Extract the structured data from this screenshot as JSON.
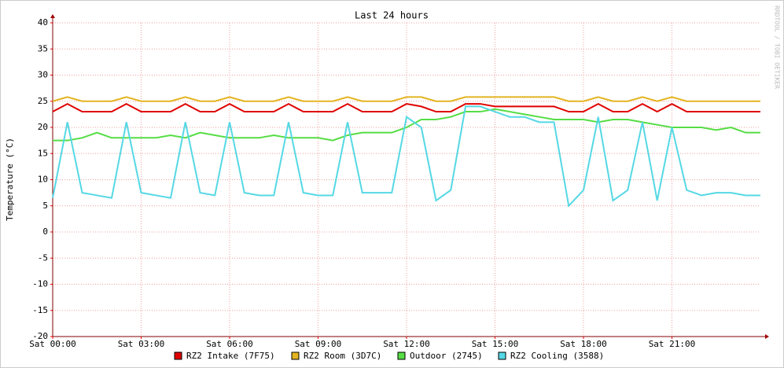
{
  "chart_data": {
    "type": "line",
    "title": "Last 24 hours",
    "y_label": "Temperature (°C)",
    "side_text": "RRDTOOL / TOBI OETIKER",
    "xlim": [
      0,
      24
    ],
    "ylim": [
      -20,
      40
    ],
    "xticks": [
      {
        "value": 0,
        "label": "Sat 00:00"
      },
      {
        "value": 3,
        "label": "Sat 03:00"
      },
      {
        "value": 6,
        "label": "Sat 06:00"
      },
      {
        "value": 9,
        "label": "Sat 09:00"
      },
      {
        "value": 12,
        "label": "Sat 12:00"
      },
      {
        "value": 15,
        "label": "Sat 15:00"
      },
      {
        "value": 18,
        "label": "Sat 18:00"
      },
      {
        "value": 21,
        "label": "Sat 21:00"
      }
    ],
    "yticks": [
      -20,
      -15,
      -10,
      -5,
      0,
      5,
      10,
      15,
      20,
      25,
      30,
      35,
      40
    ],
    "grid": true,
    "legend": "bottom",
    "x": [
      0,
      0.5,
      1,
      1.5,
      2,
      2.5,
      3,
      3.5,
      4,
      4.5,
      5,
      5.5,
      6,
      6.5,
      7,
      7.5,
      8,
      8.5,
      9,
      9.5,
      10,
      10.5,
      11,
      11.5,
      12,
      12.5,
      13,
      13.5,
      14,
      14.5,
      15,
      15.5,
      16,
      16.5,
      17,
      17.5,
      18,
      18.5,
      19,
      19.5,
      20,
      20.5,
      21,
      21.5,
      22,
      22.5,
      23,
      23.5,
      24
    ],
    "series": [
      {
        "name": "RZ2 Intake (7F75)",
        "color": "#e00000",
        "values": [
          23,
          24.5,
          23,
          23,
          23,
          24.5,
          23,
          23,
          23,
          24.5,
          23,
          23,
          24.5,
          23,
          23,
          23,
          24.5,
          23,
          23,
          23,
          24.5,
          23,
          23,
          23,
          24.5,
          24,
          23,
          23,
          24.5,
          24.5,
          24,
          24,
          24,
          24,
          24,
          23,
          23,
          24.5,
          23,
          23,
          24.5,
          23,
          24.5,
          23,
          23,
          23,
          23,
          23,
          23
        ]
      },
      {
        "name": "RZ2 Room (3D7C)",
        "color": "#e4b420",
        "values": [
          25,
          25.8,
          25,
          25,
          25,
          25.8,
          25,
          25,
          25,
          25.8,
          25,
          25,
          25.8,
          25,
          25,
          25,
          25.8,
          25,
          25,
          25,
          25.8,
          25,
          25,
          25,
          25.8,
          25.8,
          25,
          25,
          25.8,
          25.8,
          25.8,
          25.8,
          25.8,
          25.8,
          25.8,
          25,
          25,
          25.8,
          25,
          25,
          25.8,
          25,
          25.8,
          25,
          25,
          25,
          25,
          25,
          25
        ]
      },
      {
        "name": "Outdoor (2745)",
        "color": "#55dd44",
        "values": [
          17.5,
          17.5,
          18,
          19,
          18,
          18,
          18,
          18,
          18.5,
          18,
          19,
          18.5,
          18,
          18,
          18,
          18.5,
          18,
          18,
          18,
          17.5,
          18.5,
          19,
          19,
          19,
          20,
          21.5,
          21.5,
          22,
          23,
          23,
          23.5,
          23,
          22.5,
          22,
          21.5,
          21.5,
          21.5,
          21,
          21.5,
          21.5,
          21,
          20.5,
          20,
          20,
          20,
          19.5,
          20,
          19,
          19
        ]
      },
      {
        "name": "RZ2 Cooling (3588)",
        "color": "#55d8e4",
        "values": [
          6.5,
          21,
          7.5,
          7,
          6.5,
          21,
          7.5,
          7,
          6.5,
          21,
          7.5,
          7,
          21,
          7.5,
          7,
          7,
          21,
          7.5,
          7,
          7,
          21,
          7.5,
          7.5,
          7.5,
          22,
          20,
          6,
          8,
          24,
          24,
          23,
          22,
          22,
          21,
          21,
          5,
          8,
          22,
          6,
          8,
          21,
          6,
          20,
          8,
          7,
          7.5,
          7.5,
          7,
          7
        ]
      }
    ]
  }
}
